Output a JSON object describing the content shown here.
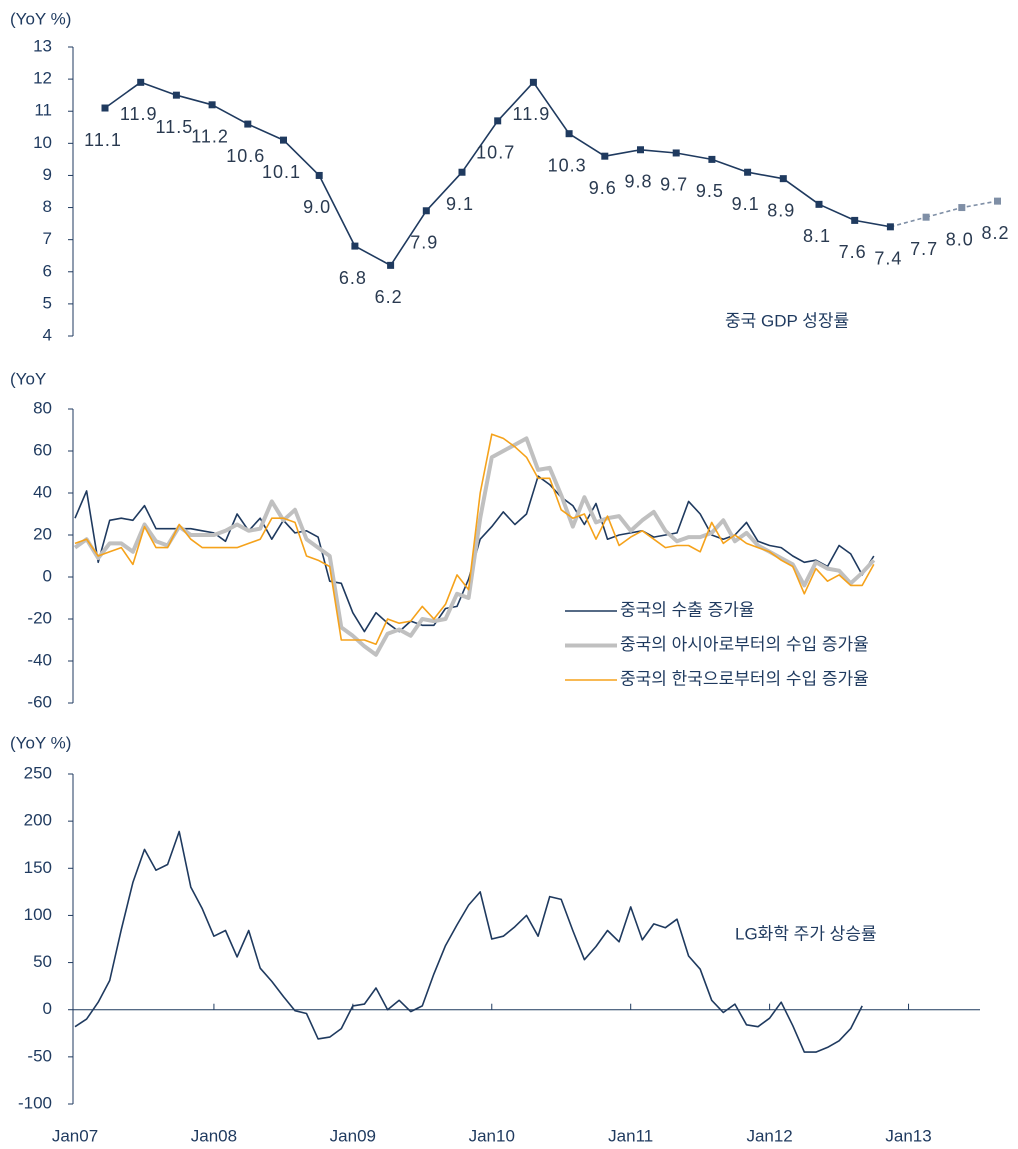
{
  "chart_data": [
    {
      "type": "line",
      "ylabel": "(YoY %)",
      "annotation": "중국 GDP 성장률",
      "ylim": [
        4,
        13
      ],
      "yticks": [
        4,
        5,
        6,
        7,
        8,
        9,
        10,
        11,
        12,
        13
      ],
      "series": [
        {
          "color": "#1f3a5f",
          "style": "solid",
          "values": [
            11.1,
            11.9,
            11.5,
            11.2,
            10.6,
            10.1,
            9.0,
            6.8,
            6.2,
            7.9,
            9.1,
            10.7,
            11.9,
            10.3,
            9.6,
            9.8,
            9.7,
            9.5,
            9.1,
            8.9,
            8.1,
            7.6,
            7.4,
            null,
            null,
            null
          ],
          "value_labels": [
            "11.1",
            "11.9",
            "11.5",
            "11.2",
            "10.6",
            "10.1",
            "9.0",
            "6.8",
            "6.2",
            "7.9",
            "9.1",
            "10.7",
            "11.9",
            "10.3",
            "9.6",
            "9.8",
            "9.7",
            "9.5",
            "9.1",
            "8.9",
            "8.1",
            "7.6",
            "7.4",
            null,
            null,
            null
          ]
        },
        {
          "color": "#7f8fa6",
          "style": "dashed",
          "values": [
            null,
            null,
            null,
            null,
            null,
            null,
            null,
            null,
            null,
            null,
            null,
            null,
            null,
            null,
            null,
            null,
            null,
            null,
            null,
            null,
            null,
            null,
            null,
            7.7,
            8.0,
            8.2
          ],
          "value_labels": [
            null,
            null,
            null,
            null,
            null,
            null,
            null,
            null,
            null,
            null,
            null,
            null,
            null,
            null,
            null,
            null,
            null,
            null,
            null,
            null,
            null,
            null,
            null,
            "7.7",
            "8.0",
            "8.2"
          ]
        }
      ]
    },
    {
      "type": "line",
      "ylabel": "(YoY",
      "xlim": [
        0,
        78
      ],
      "ylim": [
        -60,
        80
      ],
      "yticks": [
        -60,
        -40,
        -20,
        0,
        20,
        40,
        60,
        80
      ],
      "legend": "lower right",
      "series": [
        {
          "name": "중국의 수출 증가율",
          "color": "#1f3a5f",
          "width": 1.6,
          "values": [
            28,
            41,
            7,
            27,
            28,
            27,
            34,
            23,
            23,
            23,
            23,
            22,
            21,
            17,
            30,
            22,
            28,
            18,
            27,
            21,
            22,
            19,
            -2,
            -3,
            -17,
            -26,
            -17,
            -22,
            -26,
            -21,
            -23,
            -23,
            -15,
            -14,
            -1,
            18,
            24,
            31,
            25,
            30,
            48,
            44,
            38,
            34,
            25,
            35,
            18,
            20,
            21,
            22,
            19,
            20,
            21,
            36,
            30,
            20,
            18,
            20,
            26,
            17,
            15,
            14,
            10,
            7,
            8,
            5,
            15,
            11,
            1,
            10
          ]
        },
        {
          "name": "중국의 아시아로부터의 수입 증가율",
          "color": "#c0c0c0",
          "width": 4,
          "values": [
            14,
            18,
            9,
            16,
            16,
            12,
            25,
            17,
            15,
            24,
            20,
            20,
            20,
            22,
            25,
            22,
            23,
            36,
            27,
            32,
            18,
            14,
            10,
            -24,
            -28,
            -33,
            -37,
            -27,
            -25,
            -28,
            -20,
            -21,
            -20,
            -8,
            -10,
            28,
            57,
            60,
            63,
            66,
            51,
            52,
            39,
            24,
            38,
            26,
            28,
            29,
            22,
            27,
            31,
            22,
            17,
            19,
            19,
            21,
            27,
            17,
            21,
            15,
            12,
            9,
            6,
            -4,
            7,
            4,
            3,
            -3,
            2,
            8
          ]
        },
        {
          "name": "중국의 한국으로부터의 수입 증가율",
          "color": "#f5a21b",
          "width": 1.6,
          "values": [
            16,
            18,
            10,
            12,
            14,
            6,
            24,
            14,
            14,
            25,
            18,
            14,
            14,
            14,
            14,
            16,
            18,
            28,
            28,
            26,
            10,
            8,
            5,
            -30,
            -30,
            -30,
            -32,
            -20,
            -22,
            -21,
            -14,
            -20,
            -13,
            1,
            -6,
            40,
            68,
            66,
            62,
            57,
            47,
            47,
            32,
            28,
            30,
            18,
            29,
            15,
            19,
            22,
            18,
            14,
            15,
            15,
            12,
            26,
            16,
            20,
            16,
            14,
            12,
            8,
            5,
            -8,
            4,
            -2,
            1,
            -4,
            -4,
            6
          ]
        }
      ]
    },
    {
      "type": "line",
      "ylabel": "(YoY %)",
      "annotation": "LG화학 주가 상승률",
      "xlim": [
        0,
        78
      ],
      "xticks": [
        {
          "value": 0,
          "label": "Jan07"
        },
        {
          "value": 12,
          "label": "Jan08"
        },
        {
          "value": 24,
          "label": "Jan09"
        },
        {
          "value": 36,
          "label": "Jan10"
        },
        {
          "value": 48,
          "label": "Jan11"
        },
        {
          "value": 60,
          "label": "Jan12"
        },
        {
          "value": 72,
          "label": "Jan13"
        }
      ],
      "ylim": [
        -100,
        250
      ],
      "yticks": [
        -100,
        -50,
        0,
        50,
        100,
        150,
        200,
        250
      ],
      "series": [
        {
          "color": "#1f3a5f",
          "width": 1.6,
          "values": [
            -18,
            -10,
            8,
            31,
            85,
            135,
            170,
            148,
            154,
            189,
            130,
            107,
            78,
            84,
            56,
            84,
            44,
            30,
            14,
            -1,
            -4,
            -31,
            -29,
            -20,
            4,
            6,
            23,
            0,
            10,
            -2,
            4,
            38,
            68,
            90,
            111,
            125,
            75,
            78,
            88,
            100,
            78,
            120,
            117,
            84,
            53,
            67,
            84,
            72,
            109,
            74,
            91,
            87,
            96,
            57,
            43,
            10,
            -3,
            6,
            -16,
            -18,
            -9,
            8,
            -17,
            -45,
            -45,
            -40,
            -33,
            -20,
            4
          ]
        }
      ]
    }
  ]
}
